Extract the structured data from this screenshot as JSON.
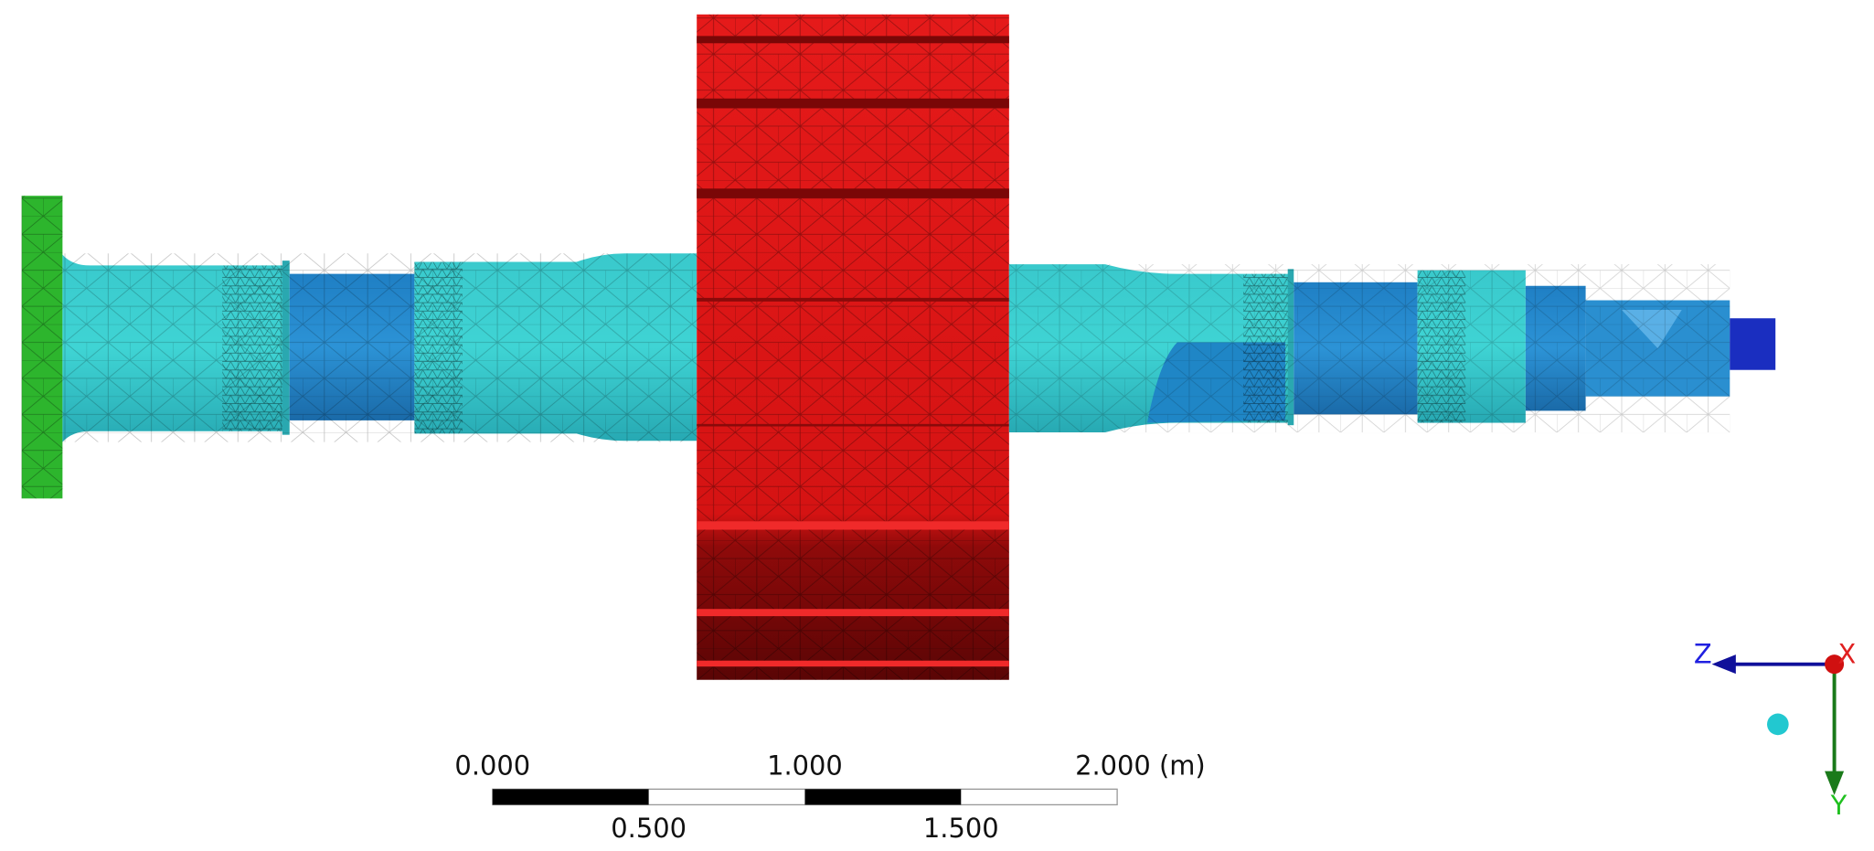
{
  "scale_bar": {
    "labels": [
      "0.000",
      "0.500",
      "1.000",
      "1.500",
      "2.000 (m)"
    ]
  },
  "triad": {
    "z": "Z",
    "x": "X",
    "y": "Y"
  }
}
